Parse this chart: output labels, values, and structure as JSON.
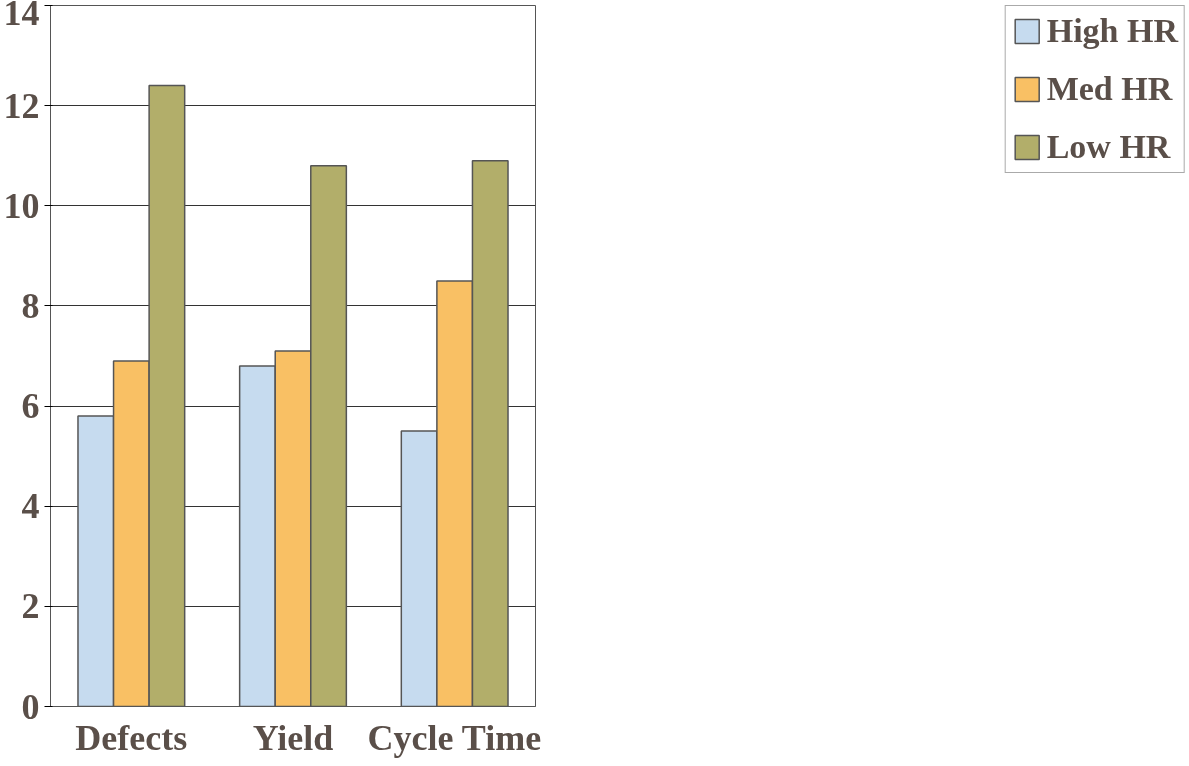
{
  "chart_data": {
    "type": "bar",
    "categories": [
      "Defects",
      "Yield",
      "Cycle Time"
    ],
    "series": [
      {
        "name": "High HR",
        "color": "#c6dbef",
        "values": [
          5.8,
          6.8,
          5.5
        ]
      },
      {
        "name": "Med HR",
        "color": "#f9c064",
        "values": [
          6.9,
          7.1,
          8.5
        ]
      },
      {
        "name": "Low HR",
        "color": "#b2ae6a",
        "values": [
          12.4,
          10.8,
          10.9
        ]
      }
    ],
    "ylim": [
      0,
      14
    ],
    "yticks": [
      0,
      2,
      4,
      6,
      8,
      10,
      12,
      14
    ],
    "grid": "y",
    "legend": "right"
  }
}
